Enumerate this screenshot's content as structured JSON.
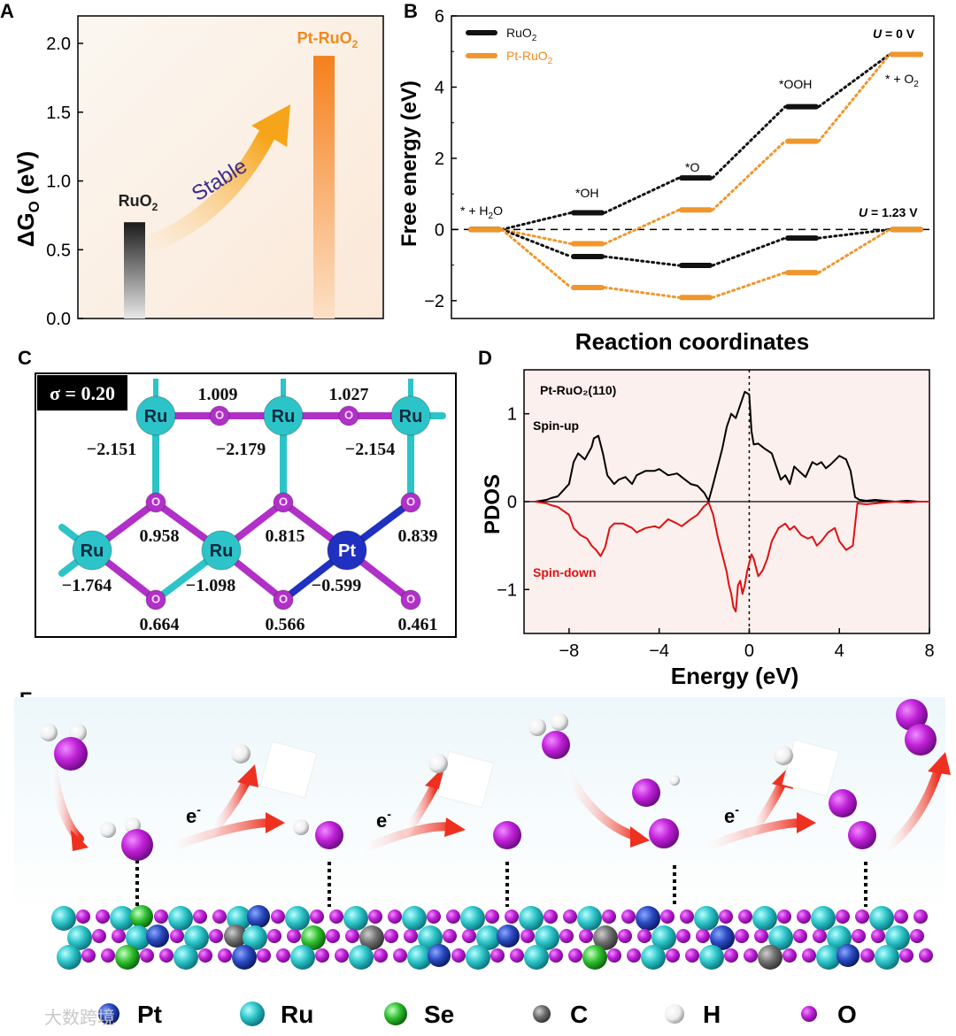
{
  "panel_labels": {
    "a": "A",
    "b": "B",
    "c": "C",
    "d": "D",
    "e": "E"
  },
  "colors": {
    "ruo2": "#111111",
    "ptruo2": "#f0962a",
    "spin_up": "#000000",
    "spin_down": "#dd1111",
    "ru": "#2cc4c8",
    "o": "#b030c8",
    "pt": "#2030c0",
    "se": "#30c030",
    "c": "#707070",
    "h": "#f4f4f4"
  },
  "chart_data": [
    {
      "panel": "A",
      "type": "bar",
      "ylabel_main": "ΔG",
      "ylabel_sub": "O",
      "ylabel_unit": " (eV)",
      "ylim": [
        0,
        2.2
      ],
      "yticks": [
        "0.0",
        "0.5",
        "1.0",
        "1.5",
        "2.0"
      ],
      "ytick_values": [
        0,
        0.5,
        1.0,
        1.5,
        2.0
      ],
      "categories": [
        "RuO2",
        "Pt-RuO2"
      ],
      "values": [
        0.7,
        1.91
      ],
      "bar_labels": [
        {
          "main": "RuO",
          "sub": "2"
        },
        {
          "main": "Pt-RuO",
          "sub": "2"
        }
      ],
      "annotation": "Stable"
    },
    {
      "panel": "B",
      "type": "line",
      "ylabel": "Free energy (eV)",
      "xlabel": "Reaction coordinates",
      "ylim": [
        -2.5,
        6
      ],
      "yticks": [
        "−2",
        "0",
        "2",
        "4",
        "6"
      ],
      "ytick_values": [
        -2,
        0,
        2,
        4,
        6
      ],
      "steps": [
        "* + H2O",
        "*OH",
        "*O",
        "*OOH",
        "* + O2"
      ],
      "step_labels": [
        {
          "main": "* + H",
          "sub": "2",
          "tail": "O"
        },
        {
          "main": "*OH"
        },
        {
          "main": "*O"
        },
        {
          "main": "*OOH"
        },
        {
          "main": "* + O",
          "sub": "2"
        }
      ],
      "potential_labels": [
        {
          "var": "U",
          "rest": " = 0 V"
        },
        {
          "var": "U",
          "rest": " = 1.23 V"
        }
      ],
      "legend": [
        {
          "main": "RuO",
          "sub": "2"
        },
        {
          "main": "Pt-RuO",
          "sub": "2"
        }
      ],
      "series": [
        {
          "name": "RuO2 (U = 0 V)",
          "values": [
            0,
            0.47,
            1.45,
            3.45,
            4.92
          ]
        },
        {
          "name": "Pt-RuO2 (U = 0 V)",
          "values": [
            0,
            -0.4,
            0.55,
            2.48,
            4.92
          ]
        },
        {
          "name": "RuO2 (U = 1.23 V)",
          "values": [
            0,
            -0.76,
            -1.01,
            -0.24,
            0
          ]
        },
        {
          "name": "Pt-RuO2 (U = 1.23 V)",
          "values": [
            0,
            -1.63,
            -1.91,
            -1.21,
            0
          ]
        }
      ]
    },
    {
      "panel": "C",
      "type": "table",
      "sigma_label": "σ = 0.20",
      "ru_label": "Ru",
      "pt_label": "Pt",
      "o_label": "O",
      "top_bridge_values": [
        "1.009",
        "1.027"
      ],
      "top_metal_values": [
        "−2.151",
        "−2.179",
        "−2.154"
      ],
      "mid_o_values": [
        "0.958",
        "0.815",
        "0.839"
      ],
      "bottom_metal_values": [
        "−1.764",
        "−1.098",
        "−0.599"
      ],
      "bottom_o_values": [
        "0.664",
        "0.566",
        "0.461"
      ]
    },
    {
      "panel": "D",
      "type": "line",
      "title": "Pt-RuO₂(110)",
      "ylabel": "PDOS",
      "xlabel": "Energy (eV)",
      "xlim": [
        -10,
        8
      ],
      "ylim": [
        -1.5,
        1.5
      ],
      "xticks": [
        "−8",
        "−4",
        "0",
        "4",
        "8"
      ],
      "xtick_values": [
        -8,
        -4,
        0,
        4,
        8
      ],
      "yticks": [
        "−1",
        "0",
        "1"
      ],
      "ytick_values": [
        -1,
        0,
        1
      ],
      "series": [
        {
          "name": "Spin-up",
          "x": [
            -9.5,
            -9,
            -8.8,
            -8.5,
            -8.0,
            -7.8,
            -7.6,
            -7.3,
            -7.0,
            -6.9,
            -6.7,
            -6.5,
            -6.3,
            -6.0,
            -5.8,
            -5.5,
            -5.2,
            -5.0,
            -4.6,
            -4.2,
            -4.0,
            -3.6,
            -3.2,
            -3.0,
            -2.6,
            -2.3,
            -2.0,
            -1.8,
            -1.6,
            -1.4,
            -1.2,
            -1.0,
            -0.8,
            -0.6,
            -0.4,
            -0.2,
            0.0,
            0.1,
            0.2,
            0.4,
            0.7,
            1.0,
            1.2,
            1.4,
            1.6,
            1.8,
            2.0,
            2.2,
            2.5,
            2.8,
            3.0,
            3.2,
            3.4,
            3.6,
            4.0,
            4.3,
            4.5,
            4.7,
            4.9,
            5.2,
            5.6,
            6.0,
            6.5,
            7.0,
            7.5,
            8.0
          ],
          "values": [
            0,
            0.02,
            0.04,
            0.06,
            0.2,
            0.45,
            0.55,
            0.48,
            0.62,
            0.72,
            0.75,
            0.55,
            0.3,
            0.2,
            0.25,
            0.28,
            0.2,
            0.3,
            0.35,
            0.35,
            0.37,
            0.3,
            0.32,
            0.28,
            0.2,
            0.18,
            0.1,
            0.01,
            0.2,
            0.4,
            0.6,
            0.85,
            1.0,
            0.95,
            1.1,
            1.25,
            1.22,
            0.8,
            0.65,
            0.66,
            0.6,
            0.55,
            0.4,
            0.25,
            0.3,
            0.2,
            0.4,
            0.35,
            0.28,
            0.45,
            0.42,
            0.45,
            0.38,
            0.42,
            0.52,
            0.48,
            0.35,
            0.05,
            0.02,
            0.01,
            0.02,
            0.01,
            0,
            0.01,
            0,
            0
          ]
        },
        {
          "name": "Spin-down",
          "x": [
            -9.5,
            -9,
            -8.8,
            -8.5,
            -8.0,
            -7.8,
            -7.5,
            -7.2,
            -7.0,
            -6.8,
            -6.6,
            -6.4,
            -6.2,
            -6.0,
            -5.6,
            -5.2,
            -5.0,
            -4.6,
            -4.2,
            -4.0,
            -3.6,
            -3.2,
            -3.0,
            -2.6,
            -2.3,
            -2.0,
            -1.8,
            -1.6,
            -1.4,
            -1.2,
            -1.0,
            -0.9,
            -0.8,
            -0.7,
            -0.6,
            -0.5,
            -0.4,
            -0.3,
            -0.2,
            -0.1,
            0.0,
            0.1,
            0.2,
            0.4,
            0.6,
            0.8,
            1.0,
            1.3,
            1.6,
            1.8,
            2.0,
            2.3,
            2.6,
            2.8,
            3.0,
            3.2,
            3.5,
            3.8,
            4.0,
            4.3,
            4.6,
            4.8,
            5.2,
            5.6,
            6.0,
            6.5,
            7.0,
            7.5,
            8.0
          ],
          "values": [
            0,
            -0.02,
            -0.04,
            -0.06,
            -0.15,
            -0.3,
            -0.38,
            -0.42,
            -0.5,
            -0.55,
            -0.62,
            -0.52,
            -0.3,
            -0.25,
            -0.25,
            -0.3,
            -0.35,
            -0.3,
            -0.28,
            -0.3,
            -0.2,
            -0.25,
            -0.28,
            -0.2,
            -0.15,
            -0.05,
            -0.01,
            -0.15,
            -0.4,
            -0.6,
            -0.8,
            -0.95,
            -1.05,
            -1.2,
            -1.25,
            -0.95,
            -0.9,
            -1.05,
            -0.95,
            -0.8,
            -0.7,
            -0.6,
            -0.65,
            -0.85,
            -0.78,
            -0.65,
            -0.45,
            -0.3,
            -0.25,
            -0.32,
            -0.28,
            -0.38,
            -0.42,
            -0.4,
            -0.5,
            -0.45,
            -0.35,
            -0.3,
            -0.45,
            -0.55,
            -0.5,
            -0.02,
            -0.03,
            -0.02,
            -0.01,
            0,
            -0.01,
            0,
            0
          ]
        }
      ]
    },
    {
      "panel": "E",
      "type": "other",
      "electron_label": "e",
      "electron_sup": "-",
      "legend": [
        "Pt",
        "Ru",
        "Se",
        "C",
        "H",
        "O"
      ],
      "watermark": "大数跨境"
    }
  ]
}
